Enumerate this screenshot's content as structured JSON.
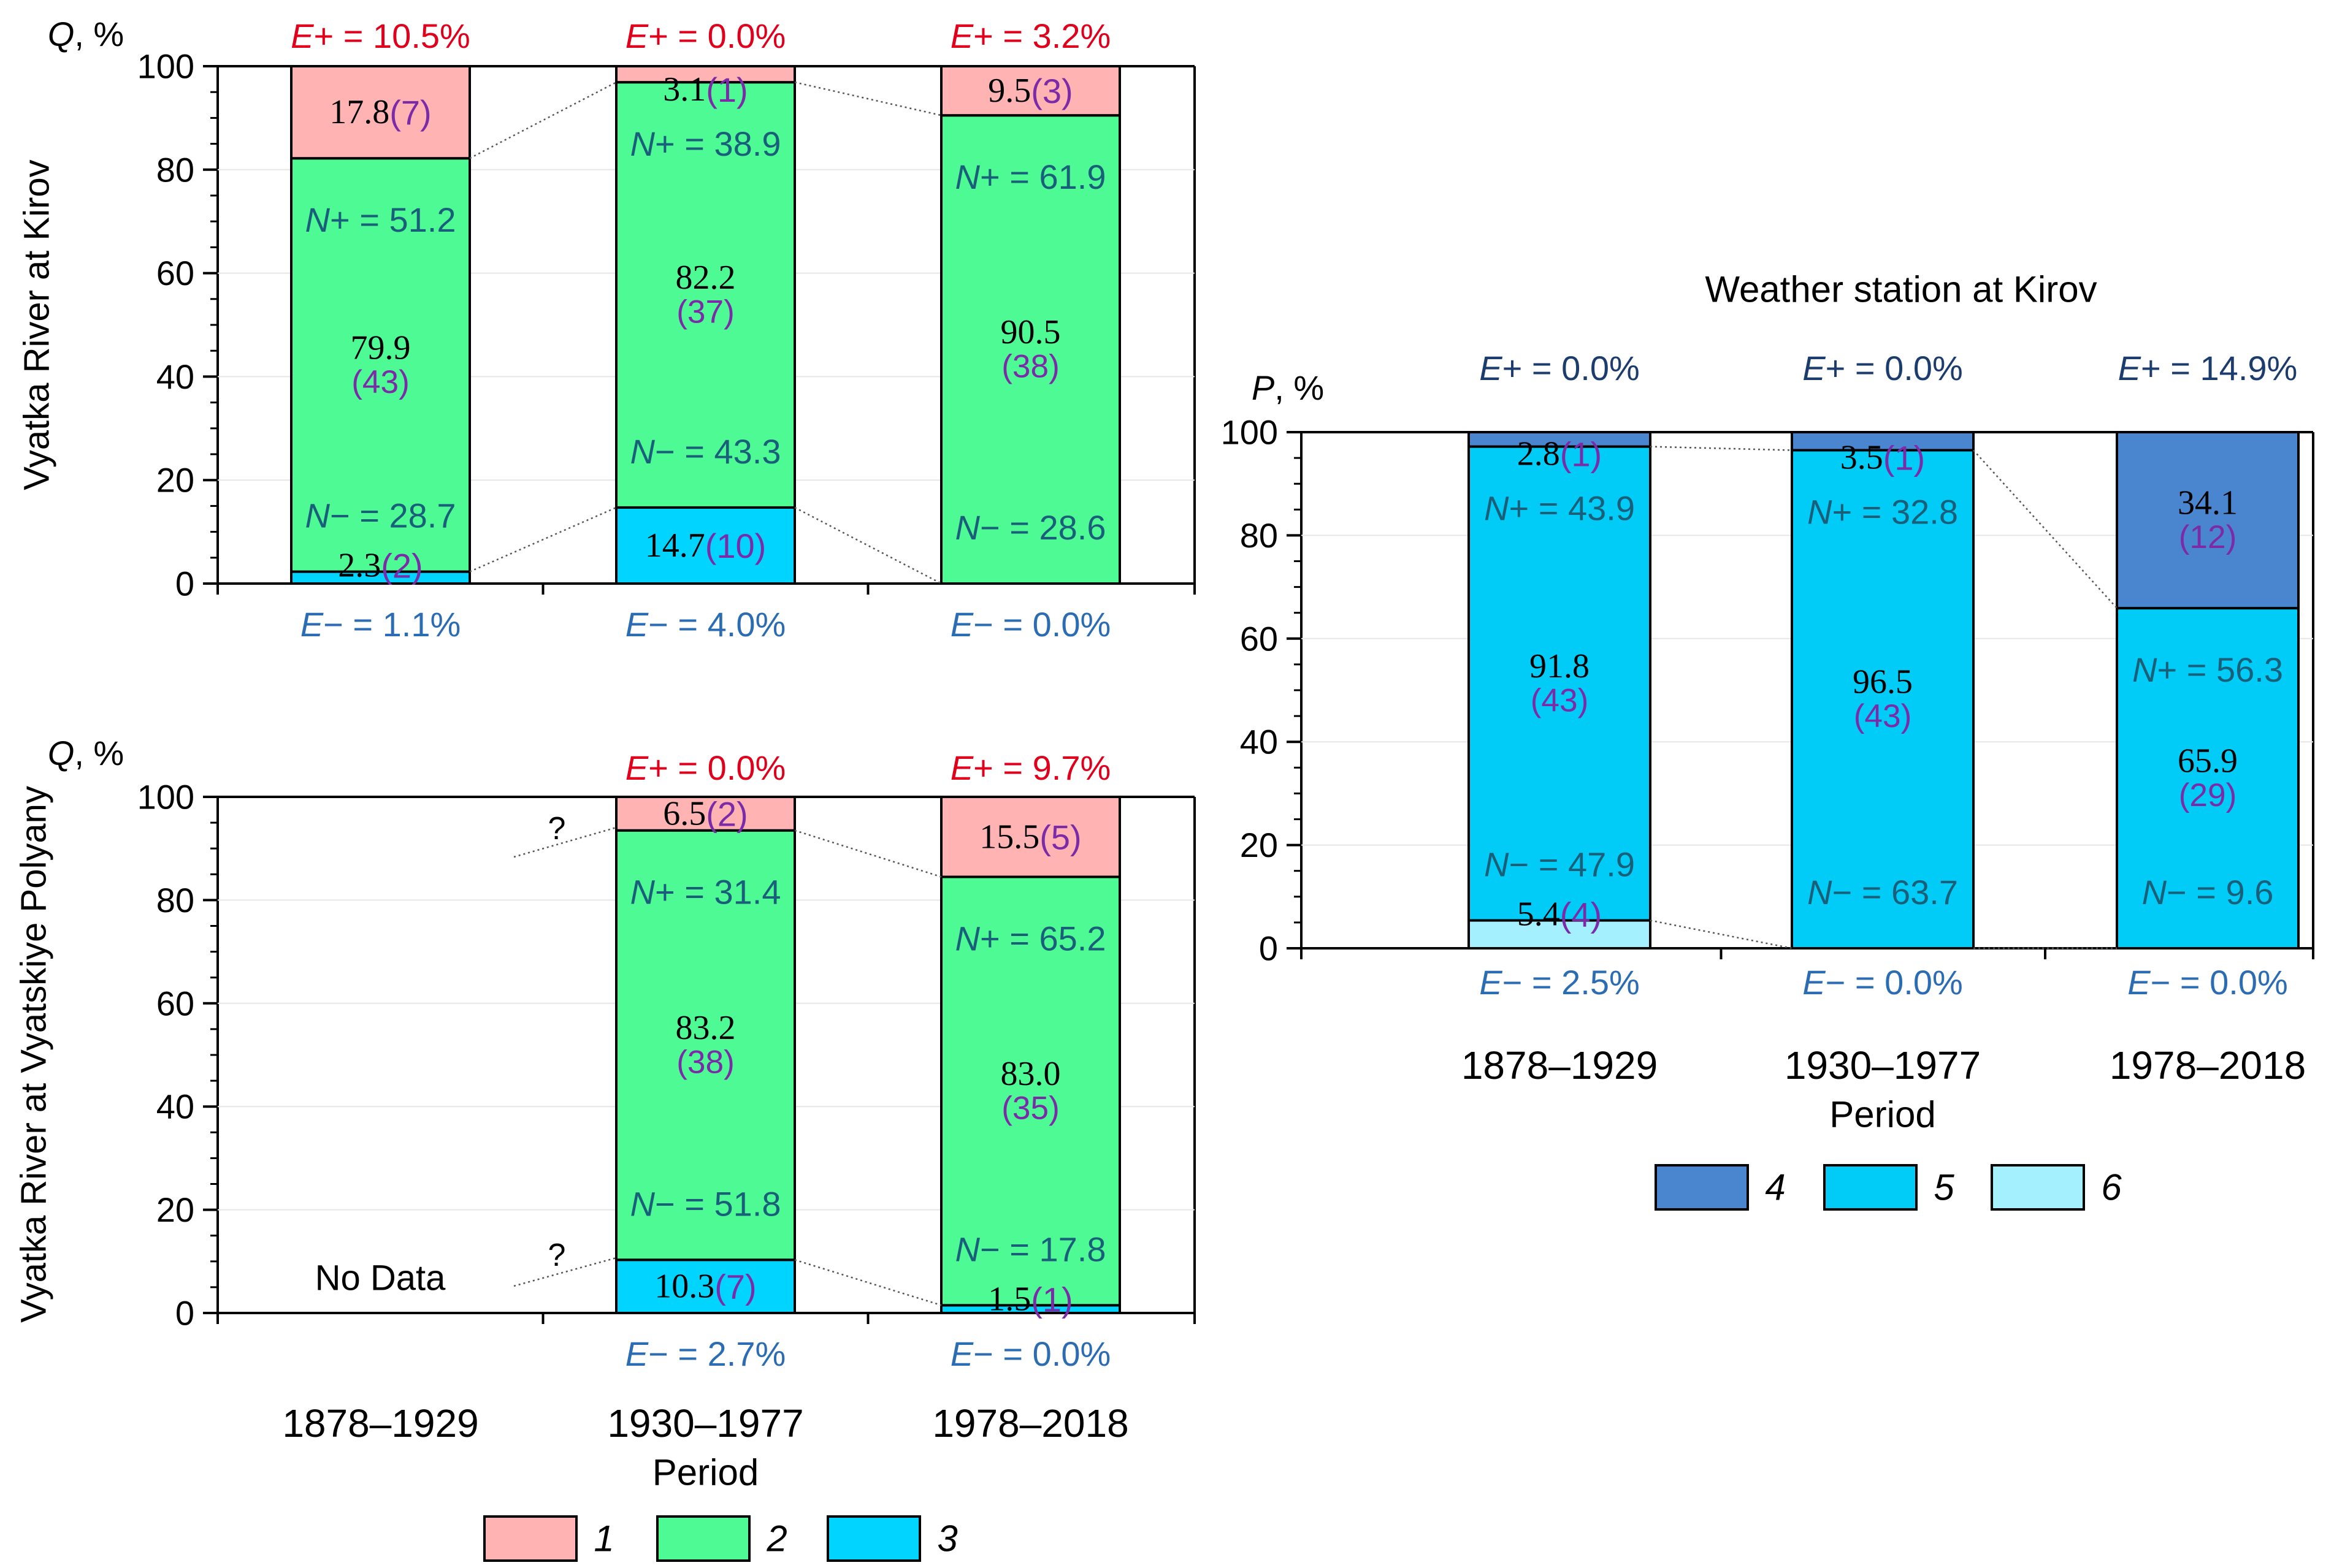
{
  "colors": {
    "c1": "#ffb3b3",
    "c2": "#4dfa93",
    "c3": "#00d4ff",
    "c4": "#4a86d0",
    "c5": "#00ccf7",
    "c6": "#a5f0ff",
    "red": "#e0001b",
    "teal": "#1a5f7a",
    "blue": "#2b6cb3",
    "purple": "#7b2ba8",
    "navy": "#1c3c6e"
  },
  "chart_data": [
    {
      "type": "bar",
      "stacked": true,
      "ylabel_left": "Vyatka River at Kirov",
      "ylabel": "Q, %",
      "ylim": [
        0,
        100
      ],
      "yticks": [
        "0",
        "20",
        "40",
        "60",
        "80",
        "100"
      ],
      "categories": [
        "1878–1929",
        "1930–1977",
        "1978–2018"
      ],
      "bars": [
        {
          "segments": [
            {
              "cls": "3",
              "value": 2.3,
              "label": "2.3",
              "count": "(2)"
            },
            {
              "cls": "2",
              "value": 79.9,
              "label": "79.9",
              "count": "(43)"
            },
            {
              "cls": "1",
              "value": 17.8,
              "label": "17.8",
              "count": "(7)"
            }
          ],
          "e_plus": "E+ = 10.5%",
          "e_minus": "E− = 1.1%",
          "n_plus": "N+ = 51.2",
          "n_minus": "N− = 28.7"
        },
        {
          "segments": [
            {
              "cls": "3",
              "value": 14.7,
              "label": "14.7",
              "count": "(10)"
            },
            {
              "cls": "2",
              "value": 82.2,
              "label": "82.2",
              "count": "(37)"
            },
            {
              "cls": "1",
              "value": 3.1,
              "label": "3.1",
              "count": "(1)"
            }
          ],
          "e_plus": "E+ = 0.0%",
          "e_minus": "E− = 4.0%",
          "n_plus": "N+ = 38.9",
          "n_minus": "N− = 43.3"
        },
        {
          "segments": [
            {
              "cls": "2",
              "value": 90.5,
              "label": "90.5",
              "count": "(38)"
            },
            {
              "cls": "1",
              "value": 9.5,
              "label": "9.5",
              "count": "(3)"
            }
          ],
          "e_plus": "E+ = 3.2%",
          "e_minus": "E− = 0.0%",
          "n_plus": "N+ = 61.9",
          "n_minus": "N− = 28.6"
        }
      ]
    },
    {
      "type": "bar",
      "stacked": true,
      "ylabel_left": "Vyatka River at Vyatskiye Polyany",
      "ylabel": "Q, %",
      "ylim": [
        0,
        100
      ],
      "yticks": [
        "0",
        "20",
        "40",
        "60",
        "80",
        "100"
      ],
      "categories": [
        "1878–1929",
        "1930–1977",
        "1978–2018"
      ],
      "xlabel": "Period",
      "no_data": "No Data",
      "question": "?",
      "bars": [
        null,
        {
          "segments": [
            {
              "cls": "3",
              "value": 10.3,
              "label": "10.3",
              "count": "(7)"
            },
            {
              "cls": "2",
              "value": 83.2,
              "label": "83.2",
              "count": "(38)"
            },
            {
              "cls": "1",
              "value": 6.5,
              "label": "6.5",
              "count": "(2)"
            }
          ],
          "e_plus": "E+ = 0.0%",
          "e_minus": "E− = 2.7%",
          "n_plus": "N+ = 31.4",
          "n_minus": "N− = 51.8"
        },
        {
          "segments": [
            {
              "cls": "3",
              "value": 1.5,
              "label": "1.5",
              "count": "(1)"
            },
            {
              "cls": "2",
              "value": 83.0,
              "label": "83.0",
              "count": "(35)"
            },
            {
              "cls": "1",
              "value": 15.5,
              "label": "15.5",
              "count": "(5)"
            }
          ],
          "e_plus": "E+ = 9.7%",
          "e_minus": "E− = 0.0%",
          "n_plus": "N+ = 65.2",
          "n_minus": "N− = 17.8"
        }
      ],
      "legend": [
        {
          "cls": "1",
          "label": "1"
        },
        {
          "cls": "2",
          "label": "2"
        },
        {
          "cls": "3",
          "label": "3"
        }
      ]
    },
    {
      "type": "bar",
      "stacked": true,
      "title": "Weather station at Kirov",
      "ylabel": "P, %",
      "ylim": [
        0,
        100
      ],
      "yticks": [
        "0",
        "20",
        "40",
        "60",
        "80",
        "100"
      ],
      "categories": [
        "1878–1929",
        "1930–1977",
        "1978–2018"
      ],
      "xlabel": "Period",
      "bars": [
        {
          "segments": [
            {
              "cls": "6",
              "value": 5.4,
              "label": "5.4",
              "count": "(4)"
            },
            {
              "cls": "5",
              "value": 91.8,
              "label": "91.8",
              "count": "(43)"
            },
            {
              "cls": "4",
              "value": 2.8,
              "label": "2.8",
              "count": "(1)"
            }
          ],
          "e_plus": "E+ = 0.0%",
          "e_minus": "E− = 2.5%",
          "n_plus": "N+ = 43.9",
          "n_minus": "N− = 47.9"
        },
        {
          "segments": [
            {
              "cls": "5",
              "value": 96.5,
              "label": "96.5",
              "count": "(43)"
            },
            {
              "cls": "4",
              "value": 3.5,
              "label": "3.5",
              "count": "(1)"
            }
          ],
          "e_plus": "E+ = 0.0%",
          "e_minus": "E− = 0.0%",
          "n_plus": "N+ = 32.8",
          "n_minus": "N− = 63.7"
        },
        {
          "segments": [
            {
              "cls": "5",
              "value": 65.9,
              "label": "65.9",
              "count": "(29)"
            },
            {
              "cls": "4",
              "value": 34.1,
              "label": "34.1",
              "count": "(12)"
            }
          ],
          "e_plus": "E+ = 14.9%",
          "e_minus": "E− = 0.0%",
          "n_plus": "N+ = 56.3",
          "n_minus": "N− = 9.6"
        }
      ],
      "legend": [
        {
          "cls": "4",
          "label": "4"
        },
        {
          "cls": "5",
          "label": "5"
        },
        {
          "cls": "6",
          "label": "6"
        }
      ]
    }
  ]
}
